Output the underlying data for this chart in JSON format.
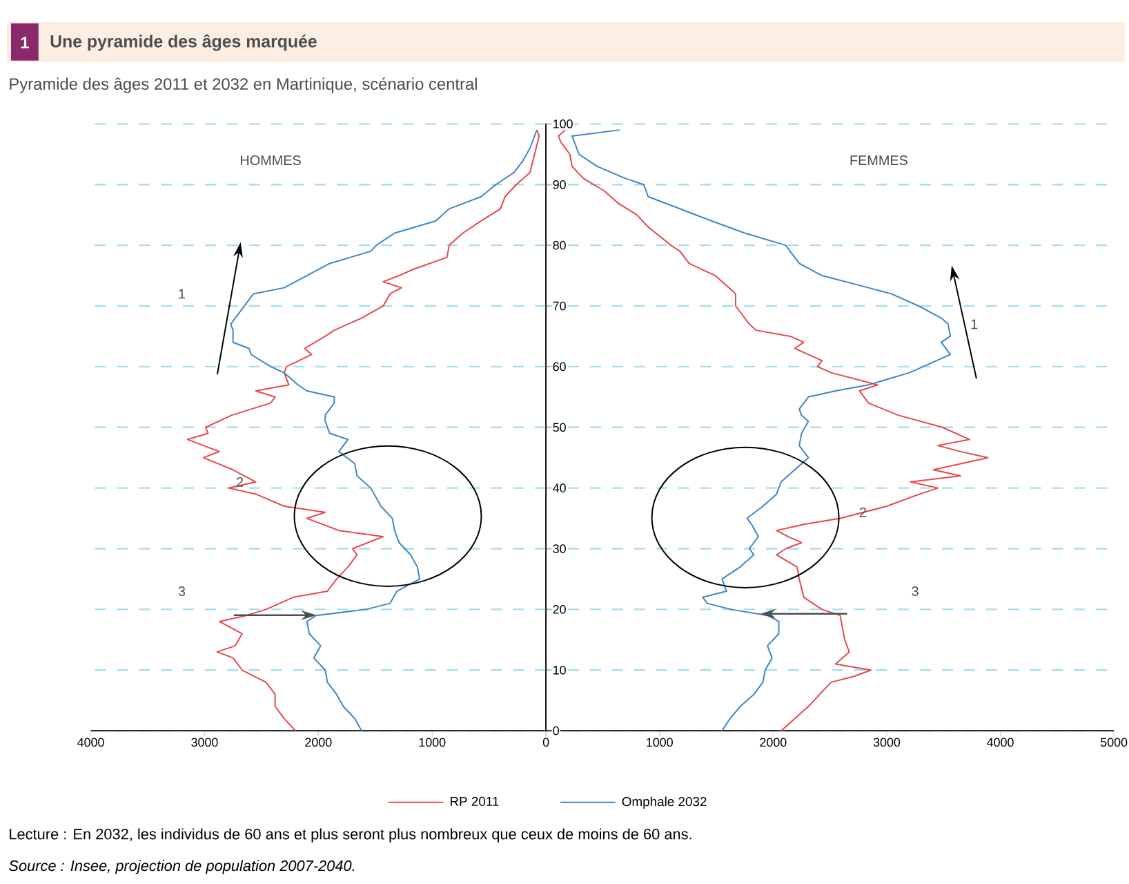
{
  "chart_data": [
    {
      "type": "line",
      "title": "Une pyramide des âges marquée",
      "subtitle": "Pyramide des âges 2011 et 2032 en Martinique, scénario central",
      "orientation": "horizontal",
      "xlim": [
        4000,
        0
      ],
      "xticks": [
        4000,
        3000,
        2000,
        1000,
        0
      ],
      "ylim": [
        0,
        100
      ],
      "yticks": [
        0,
        10,
        20,
        30,
        40,
        50,
        60,
        70,
        80,
        90,
        100
      ],
      "grid": "y",
      "legend": "bottom",
      "annotations": [
        "1",
        "HOMMES",
        "1",
        "2",
        "3"
      ],
      "series": [
        {
          "name": "RP 2011",
          "color": "#e8474c",
          "x": [
            0,
            2,
            4,
            6,
            8,
            10,
            12,
            13,
            14,
            16,
            18,
            19,
            20,
            22,
            23,
            25,
            27,
            29,
            30,
            32,
            33,
            35,
            36,
            37,
            39,
            40,
            41,
            43,
            45,
            46,
            48,
            49,
            50,
            52,
            54,
            55,
            56,
            57,
            59,
            60,
            62,
            63,
            65,
            66,
            68,
            70,
            72,
            73,
            74,
            75,
            76,
            78,
            80,
            82,
            84,
            86,
            88,
            90,
            92,
            95,
            98,
            99
          ],
          "values": [
            2200,
            2300,
            2380,
            2380,
            2460,
            2670,
            2750,
            2890,
            2730,
            2670,
            2870,
            2630,
            2460,
            2220,
            1920,
            1840,
            1740,
            1660,
            1700,
            1430,
            1820,
            2100,
            1940,
            2300,
            2550,
            2790,
            2550,
            2750,
            3010,
            2870,
            3150,
            2970,
            2990,
            2760,
            2420,
            2380,
            2550,
            2260,
            2300,
            2280,
            2060,
            2120,
            1940,
            1860,
            1620,
            1430,
            1370,
            1270,
            1430,
            1290,
            1170,
            870,
            850,
            730,
            570,
            400,
            360,
            260,
            140,
            100,
            60,
            80
          ]
        },
        {
          "name": "Omphale 2032",
          "color": "#3d86c6",
          "x": [
            0,
            2,
            4,
            6,
            8,
            10,
            12,
            14,
            16,
            18,
            19,
            20,
            21,
            23,
            25,
            27,
            29,
            31,
            33,
            35,
            37,
            40,
            42,
            44,
            46,
            48,
            49,
            51,
            52,
            54,
            55,
            56,
            57,
            59,
            60,
            62,
            63,
            64,
            66,
            67,
            69,
            71,
            72,
            73,
            75,
            77,
            79,
            80,
            82,
            84,
            86,
            88,
            90,
            92,
            94,
            96,
            98,
            99
          ],
          "values": [
            1620,
            1680,
            1780,
            1840,
            1920,
            1940,
            2040,
            1980,
            2080,
            2100,
            2020,
            1580,
            1370,
            1310,
            1110,
            1130,
            1190,
            1290,
            1330,
            1350,
            1450,
            1540,
            1660,
            1680,
            1820,
            1740,
            1900,
            1940,
            1940,
            1860,
            1860,
            2100,
            2180,
            2300,
            2420,
            2590,
            2610,
            2750,
            2750,
            2770,
            2690,
            2610,
            2570,
            2300,
            2100,
            1900,
            1540,
            1490,
            1330,
            970,
            850,
            570,
            440,
            280,
            200,
            140,
            100,
            80
          ]
        }
      ]
    },
    {
      "type": "line",
      "orientation": "horizontal",
      "xlim": [
        0,
        5000
      ],
      "xticks": [
        {
          "value": 0,
          "label": null
        },
        1000,
        2000,
        3000,
        4000,
        5000
      ],
      "ylim": [
        0,
        100
      ],
      "yticks": [
        0,
        10,
        20,
        30,
        40,
        50,
        60,
        70,
        80,
        90,
        100
      ],
      "grid": "y",
      "tick_labels": "x",
      "annotations": [
        "FEMMES",
        "1",
        "2",
        "3",
        "Lecture : En 2032, les individus de 60 ans et plus seront plus nombreux que ceux de moins de 60 ans.",
        "Source : Insee, projection de population 2007-2040."
      ],
      "series": [
        {
          "color": "#e8474c",
          "x": [
            0,
            2,
            4,
            6,
            8,
            9,
            10,
            11,
            13,
            15,
            17,
            19,
            20,
            22,
            25,
            27,
            29,
            30,
            31,
            32,
            33,
            34,
            35,
            37,
            39,
            40,
            41,
            42,
            43,
            45,
            46,
            47,
            48,
            50,
            52,
            54,
            56,
            57,
            59,
            60,
            61,
            63,
            64,
            65,
            66,
            67,
            69,
            70,
            72,
            73,
            74,
            75,
            77,
            79,
            80,
            83,
            85,
            87,
            89,
            91,
            93,
            95,
            97,
            98,
            99
          ],
          "values": [
            2070,
            2190,
            2310,
            2410,
            2510,
            2720,
            2860,
            2550,
            2670,
            2630,
            2610,
            2590,
            2430,
            2270,
            2230,
            2210,
            2030,
            2110,
            2250,
            2130,
            2030,
            2270,
            2590,
            3000,
            3290,
            3450,
            3210,
            3650,
            3410,
            3890,
            3650,
            3450,
            3730,
            3490,
            3100,
            2840,
            2760,
            2920,
            2510,
            2390,
            2430,
            2190,
            2270,
            2150,
            1850,
            1790,
            1710,
            1670,
            1670,
            1610,
            1550,
            1490,
            1260,
            1180,
            1100,
            900,
            800,
            630,
            510,
            330,
            230,
            210,
            130,
            110,
            170
          ]
        },
        {
          "color": "#3d86c6",
          "x": [
            0,
            2,
            4,
            6,
            8,
            10,
            12,
            14,
            16,
            18,
            19,
            20,
            21,
            22,
            23,
            25,
            27,
            29,
            30,
            32,
            34,
            35,
            37,
            39,
            41,
            43,
            45,
            47,
            49,
            51,
            52,
            53,
            55,
            56,
            57,
            59,
            61,
            62,
            64,
            65,
            67,
            68,
            70,
            72,
            73,
            75,
            77,
            80,
            82,
            84,
            86,
            88,
            90,
            91,
            93,
            95,
            97,
            98,
            99
          ],
          "values": [
            1550,
            1620,
            1710,
            1830,
            1910,
            1930,
            1990,
            1950,
            2050,
            2050,
            1950,
            1630,
            1420,
            1380,
            1590,
            1550,
            1710,
            1830,
            1790,
            1870,
            1810,
            1770,
            1910,
            2030,
            2070,
            2190,
            2310,
            2230,
            2250,
            2310,
            2250,
            2230,
            2310,
            2550,
            2840,
            3200,
            3440,
            3560,
            3480,
            3560,
            3540,
            3480,
            3280,
            3040,
            2840,
            2430,
            2230,
            2110,
            1750,
            1460,
            1180,
            900,
            860,
            700,
            450,
            290,
            250,
            230,
            650
          ]
        }
      ]
    }
  ]
}
